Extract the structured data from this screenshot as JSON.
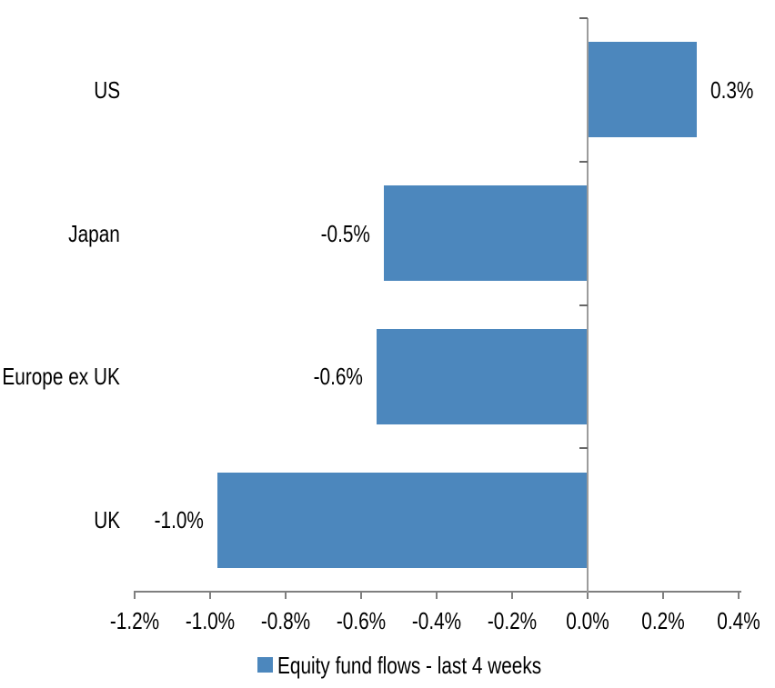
{
  "chart_data": {
    "type": "bar",
    "orientation": "horizontal",
    "title": "",
    "xlabel": "",
    "ylabel": "",
    "categories": [
      "US",
      "Japan",
      "Europe ex UK",
      "UK"
    ],
    "values": [
      0.3,
      -0.5,
      -0.6,
      -1.0
    ],
    "data_labels": [
      "0.3%",
      "-0.5%",
      "-0.6%",
      "-1.0%"
    ],
    "bar_extents_pct_estimated": [
      0.29,
      -0.54,
      -0.56,
      -0.98
    ],
    "series_name": "Equity fund flows - last 4 weeks",
    "x_tick_labels": [
      "-1.2%",
      "-1.0%",
      "-0.8%",
      "-0.6%",
      "-0.4%",
      "-0.2%",
      "0.0%",
      "0.2%",
      "0.4%"
    ],
    "xlim": [
      -1.2,
      0.4
    ],
    "x_tick_step": 0.2,
    "grid": false,
    "legend_position": "bottom",
    "bar_color": "#4C87BD",
    "zero_axis_color": "#9C9C9C",
    "x_axis_color": "#7F7F7F",
    "category_tick_color": "#666666",
    "text_color": "#000000"
  },
  "legend": {
    "items": [
      {
        "label": "Equity fund flows - last 4 weeks",
        "color": "#4C87BD"
      }
    ]
  }
}
